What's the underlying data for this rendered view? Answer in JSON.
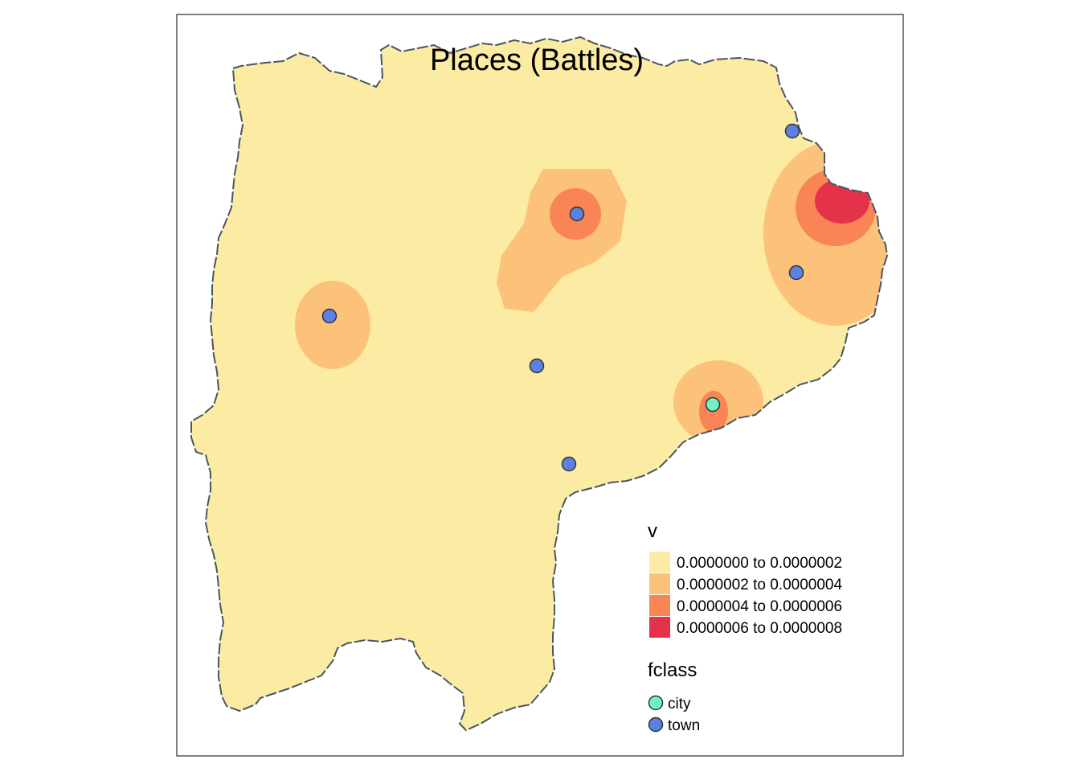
{
  "map": {
    "title": "Places (Battles)",
    "raster_legend": {
      "title": "v",
      "classes": [
        {
          "label": "0.0000000 to 0.0000002",
          "color": "#FCEBA3"
        },
        {
          "label": "0.0000002 to 0.0000004",
          "color": "#FCC27A"
        },
        {
          "label": "0.0000004 to 0.0000006",
          "color": "#F98556"
        },
        {
          "label": "0.0000006 to 0.0000008",
          "color": "#E3324A"
        }
      ]
    },
    "point_legend": {
      "title": "fclass",
      "classes": [
        {
          "label": "city",
          "color": "#6FF2C6"
        },
        {
          "label": "town",
          "color": "#5B82E3"
        }
      ]
    },
    "colors": {
      "boundary": "#4A5563",
      "frame": "#000000",
      "point_outline": "#333333"
    }
  }
}
